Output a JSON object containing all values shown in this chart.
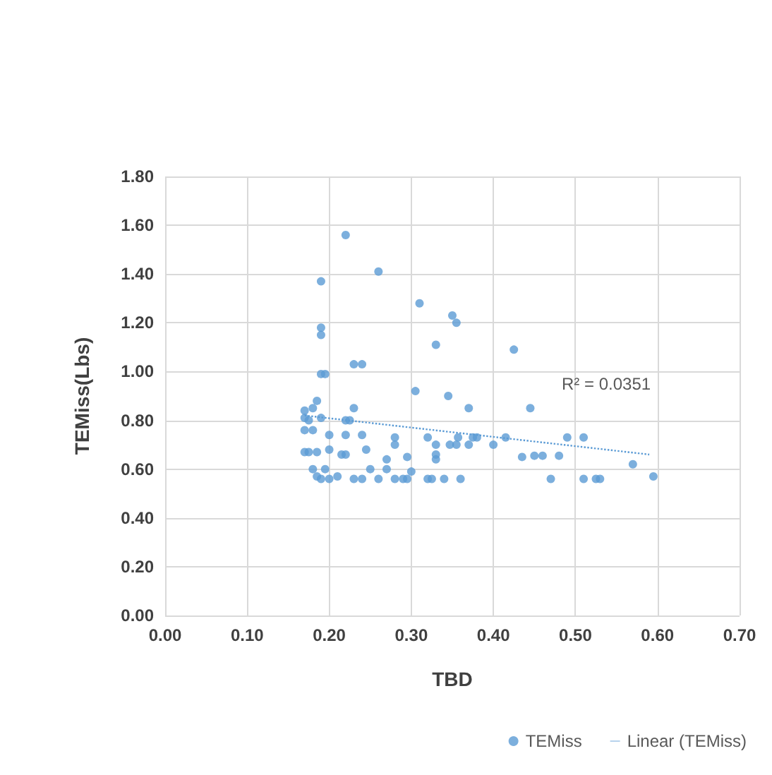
{
  "chart_data": {
    "type": "scatter",
    "xlabel": "TBD",
    "ylabel": "TEMiss(Lbs)",
    "xlim": [
      0,
      0.7
    ],
    "ylim": [
      0,
      1.8
    ],
    "xticks": [
      {
        "value": 0,
        "label": "0.00"
      },
      {
        "value": 0.1,
        "label": "0.10"
      },
      {
        "value": 0.2,
        "label": "0.20"
      },
      {
        "value": 0.3,
        "label": "0.30"
      },
      {
        "value": 0.4,
        "label": "0.40"
      },
      {
        "value": 0.5,
        "label": "0.50"
      },
      {
        "value": 0.6,
        "label": "0.60"
      },
      {
        "value": 0.7,
        "label": "0.70"
      }
    ],
    "yticks": [
      {
        "value": 0,
        "label": "0.00"
      },
      {
        "value": 0.2,
        "label": "0.20"
      },
      {
        "value": 0.4,
        "label": "0.40"
      },
      {
        "value": 0.6,
        "label": "0.60"
      },
      {
        "value": 0.8,
        "label": "0.80"
      },
      {
        "value": 1,
        "label": "1.00"
      },
      {
        "value": 1.2,
        "label": "1.20"
      },
      {
        "value": 1.4,
        "label": "1.40"
      },
      {
        "value": 1.6,
        "label": "1.60"
      },
      {
        "value": 1.8,
        "label": "1.80"
      }
    ],
    "grid": true,
    "legend": "bottom right",
    "annotations": [
      "R² = 0.0351"
    ],
    "series": [
      {
        "name": "TEMiss",
        "color": "#5b9bd5",
        "marker": "circle",
        "x": [
          0.22,
          0.26,
          0.19,
          0.19,
          0.19,
          0.23,
          0.24,
          0.19,
          0.195,
          0.31,
          0.35,
          0.355,
          0.33,
          0.425,
          0.305,
          0.345,
          0.37,
          0.445,
          0.185,
          0.17,
          0.18,
          0.17,
          0.175,
          0.19,
          0.23,
          0.22,
          0.225,
          0.17,
          0.18,
          0.2,
          0.22,
          0.24,
          0.28,
          0.28,
          0.2,
          0.245,
          0.17,
          0.175,
          0.185,
          0.215,
          0.22,
          0.27,
          0.295,
          0.18,
          0.195,
          0.25,
          0.27,
          0.185,
          0.19,
          0.2,
          0.21,
          0.23,
          0.24,
          0.26,
          0.28,
          0.29,
          0.295,
          0.32,
          0.357,
          0.375,
          0.38,
          0.415,
          0.49,
          0.33,
          0.347,
          0.355,
          0.37,
          0.4,
          0.33,
          0.33,
          0.435,
          0.45,
          0.46,
          0.48,
          0.3,
          0.32,
          0.325,
          0.34,
          0.36,
          0.47,
          0.51,
          0.57,
          0.51,
          0.525,
          0.53,
          0.595
        ],
        "values": [
          1.56,
          1.41,
          1.37,
          1.18,
          1.15,
          1.03,
          1.03,
          0.99,
          0.99,
          1.28,
          1.23,
          1.2,
          1.11,
          1.09,
          0.92,
          0.9,
          0.85,
          0.85,
          0.88,
          0.84,
          0.85,
          0.81,
          0.8,
          0.81,
          0.85,
          0.8,
          0.8,
          0.76,
          0.76,
          0.74,
          0.74,
          0.74,
          0.73,
          0.7,
          0.68,
          0.68,
          0.67,
          0.67,
          0.67,
          0.66,
          0.66,
          0.64,
          0.65,
          0.6,
          0.6,
          0.6,
          0.6,
          0.57,
          0.56,
          0.56,
          0.57,
          0.56,
          0.56,
          0.56,
          0.56,
          0.56,
          0.56,
          0.73,
          0.73,
          0.73,
          0.73,
          0.73,
          0.73,
          0.7,
          0.7,
          0.7,
          0.7,
          0.7,
          0.66,
          0.64,
          0.65,
          0.655,
          0.655,
          0.655,
          0.59,
          0.56,
          0.56,
          0.56,
          0.56,
          0.56,
          0.73,
          0.62,
          0.56,
          0.56,
          0.56,
          0.57
        ]
      },
      {
        "name": "Linear (TEMiss)",
        "color": "#5b9bd5",
        "type": "line",
        "marker": "none",
        "line_style": "dotted",
        "x": [
          0.17,
          0.59
        ],
        "values": [
          0.82,
          0.66
        ]
      }
    ]
  }
}
